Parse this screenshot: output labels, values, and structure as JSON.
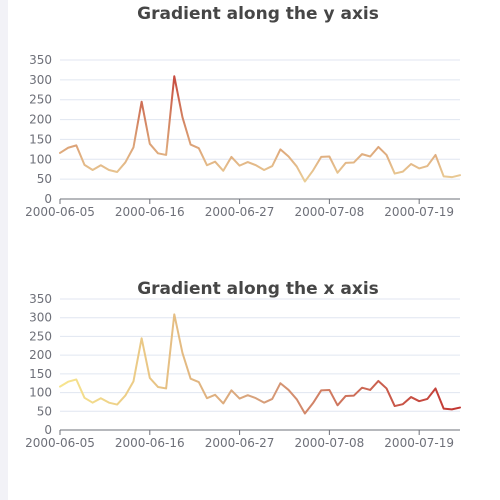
{
  "chart_data": [
    {
      "type": "line",
      "title": "Gradient along the y axis",
      "gradient": "y",
      "ylim": [
        0,
        350
      ],
      "yticks": [
        0,
        50,
        100,
        150,
        200,
        250,
        300,
        350
      ],
      "xtick_labels": [
        "2000-06-05",
        "2000-06-16",
        "2000-06-27",
        "2000-07-08",
        "2000-07-19"
      ],
      "grid": true,
      "colors": [
        "#f1e3a6",
        "#d6906a",
        "#c23531"
      ]
    },
    {
      "type": "line",
      "title": "Gradient along the x axis",
      "gradient": "x",
      "ylim": [
        0,
        350
      ],
      "yticks": [
        0,
        50,
        100,
        150,
        200,
        250,
        300,
        350
      ],
      "xtick_labels": [
        "2000-06-05",
        "2000-06-16",
        "2000-06-27",
        "2000-07-08",
        "2000-07-19"
      ],
      "grid": true,
      "colors": [
        "#f7e58e",
        "#d7a07b",
        "#c23531"
      ]
    }
  ],
  "series_data": {
    "x": [
      "2000-06-05",
      "2000-06-06",
      "2000-06-07",
      "2000-06-08",
      "2000-06-09",
      "2000-06-10",
      "2000-06-11",
      "2000-06-12",
      "2000-06-13",
      "2000-06-14",
      "2000-06-15",
      "2000-06-16",
      "2000-06-17",
      "2000-06-18",
      "2000-06-19",
      "2000-06-20",
      "2000-06-21",
      "2000-06-22",
      "2000-06-23",
      "2000-06-24",
      "2000-06-25",
      "2000-06-26",
      "2000-06-27",
      "2000-06-28",
      "2000-06-29",
      "2000-06-30",
      "2000-07-01",
      "2000-07-02",
      "2000-07-03",
      "2000-07-04",
      "2000-07-05",
      "2000-07-06",
      "2000-07-07",
      "2000-07-08",
      "2000-07-09",
      "2000-07-10",
      "2000-07-11",
      "2000-07-12",
      "2000-07-13",
      "2000-07-14",
      "2000-07-15",
      "2000-07-16",
      "2000-07-17",
      "2000-07-18",
      "2000-07-19",
      "2000-07-20",
      "2000-07-21",
      "2000-07-22",
      "2000-07-23",
      "2000-07-24"
    ],
    "y": [
      116,
      129,
      135,
      86,
      73,
      85,
      73,
      68,
      92,
      130,
      245,
      139,
      115,
      111,
      309,
      206,
      137,
      128,
      85,
      94,
      71,
      106,
      84,
      93,
      85,
      73,
      83,
      125,
      107,
      82,
      44,
      72,
      106,
      107,
      66,
      91,
      92,
      113,
      107,
      131,
      111,
      64,
      69,
      88,
      77,
      83,
      111,
      57,
      55,
      60
    ]
  }
}
